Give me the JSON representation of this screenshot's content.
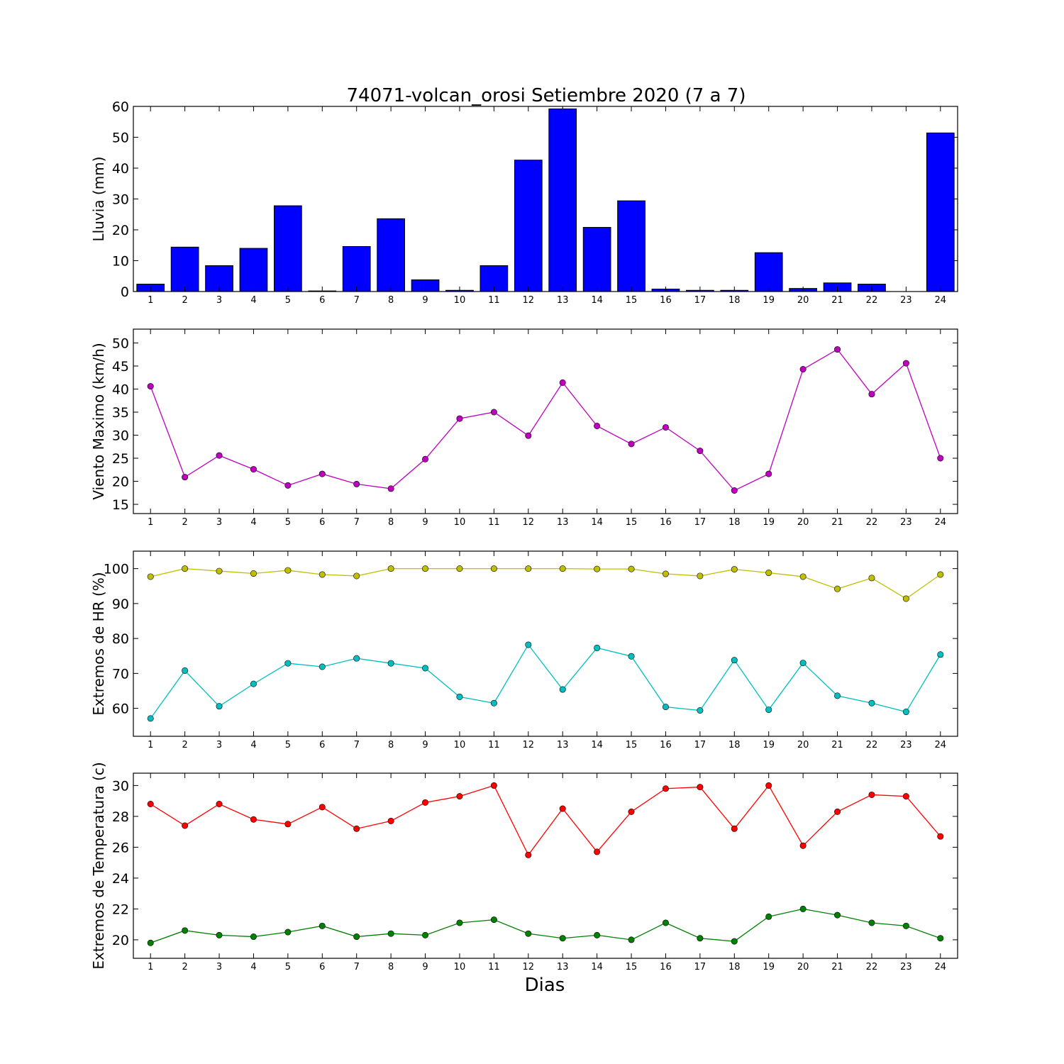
{
  "chart_data": [
    {
      "type": "bar",
      "title": "74071-volcan_orosi Setiembre 2020  (7 a 7)",
      "ylabel": "Lluvia (mm)",
      "xlabel": "",
      "x": [
        1,
        2,
        3,
        4,
        5,
        6,
        7,
        8,
        9,
        10,
        11,
        12,
        13,
        14,
        15,
        16,
        17,
        18,
        19,
        20,
        21,
        22,
        23,
        24
      ],
      "ylim": [
        0,
        60
      ],
      "yticks": [
        0,
        10,
        20,
        30,
        40,
        50,
        60
      ],
      "series": [
        {
          "color": "#0000ff",
          "values": [
            2.4,
            14.4,
            8.4,
            14.0,
            27.8,
            0.2,
            14.6,
            23.6,
            3.8,
            0.4,
            8.4,
            42.6,
            59.2,
            20.8,
            29.4,
            0.8,
            0.4,
            0.4,
            12.6,
            1.0,
            2.8,
            2.4,
            0.0,
            51.4
          ]
        }
      ]
    },
    {
      "type": "line",
      "title": "",
      "ylabel": "Viento Maximo (km/h)",
      "xlabel": "",
      "x": [
        1,
        2,
        3,
        4,
        5,
        6,
        7,
        8,
        9,
        10,
        11,
        12,
        13,
        14,
        15,
        16,
        17,
        18,
        19,
        20,
        21,
        22,
        23,
        24
      ],
      "ylim": [
        13,
        53
      ],
      "yticks": [
        15,
        20,
        25,
        30,
        35,
        40,
        45,
        50
      ],
      "series": [
        {
          "color": "#bf00bf",
          "values": [
            40.6,
            20.9,
            25.6,
            22.6,
            19.1,
            21.6,
            19.4,
            18.4,
            24.8,
            33.6,
            35.0,
            29.9,
            41.4,
            32.0,
            28.1,
            31.7,
            26.6,
            18.0,
            21.6,
            44.3,
            48.6,
            38.9,
            45.6,
            25.0
          ]
        }
      ]
    },
    {
      "type": "line",
      "title": "",
      "ylabel": "Extremos de HR (%)",
      "xlabel": "",
      "x": [
        1,
        2,
        3,
        4,
        5,
        6,
        7,
        8,
        9,
        10,
        11,
        12,
        13,
        14,
        15,
        16,
        17,
        18,
        19,
        20,
        21,
        22,
        23,
        24
      ],
      "ylim": [
        52,
        105
      ],
      "yticks": [
        60,
        70,
        80,
        90,
        100
      ],
      "series": [
        {
          "color": "#bfbf00",
          "values": [
            97.7,
            100.0,
            99.3,
            98.6,
            99.5,
            98.3,
            97.9,
            100.0,
            100.0,
            100.0,
            100.0,
            100.0,
            100.0,
            99.9,
            99.9,
            98.5,
            97.9,
            99.8,
            98.8,
            97.7,
            94.2,
            97.3,
            91.4,
            98.3
          ]
        },
        {
          "color": "#00bfbf",
          "values": [
            57.1,
            70.8,
            60.6,
            67.0,
            72.9,
            71.9,
            74.3,
            72.9,
            71.5,
            63.3,
            61.5,
            78.2,
            65.4,
            77.3,
            74.9,
            60.4,
            59.4,
            73.8,
            59.6,
            73.0,
            63.6,
            61.5,
            59.0,
            75.4
          ]
        }
      ]
    },
    {
      "type": "line",
      "title": "",
      "ylabel": "Extremos de Temperatura (c)",
      "xlabel": "Dias",
      "x": [
        1,
        2,
        3,
        4,
        5,
        6,
        7,
        8,
        9,
        10,
        11,
        12,
        13,
        14,
        15,
        16,
        17,
        18,
        19,
        20,
        21,
        22,
        23,
        24
      ],
      "ylim": [
        18.8,
        30.8
      ],
      "yticks": [
        20,
        22,
        24,
        26,
        28,
        30
      ],
      "series": [
        {
          "color": "#ff0000",
          "values": [
            28.8,
            27.4,
            28.8,
            27.8,
            27.5,
            28.6,
            27.2,
            27.7,
            28.9,
            29.3,
            30.0,
            25.5,
            28.5,
            25.7,
            28.3,
            29.8,
            29.9,
            27.2,
            30.0,
            26.1,
            28.3,
            29.4,
            29.3,
            26.7
          ]
        },
        {
          "color": "#008000",
          "values": [
            19.8,
            20.6,
            20.3,
            20.2,
            20.5,
            20.9,
            20.2,
            20.4,
            20.3,
            21.1,
            21.3,
            20.4,
            20.1,
            20.3,
            20.0,
            21.1,
            20.1,
            19.9,
            21.5,
            22.0,
            21.6,
            21.1,
            20.9,
            20.1
          ]
        }
      ]
    }
  ]
}
